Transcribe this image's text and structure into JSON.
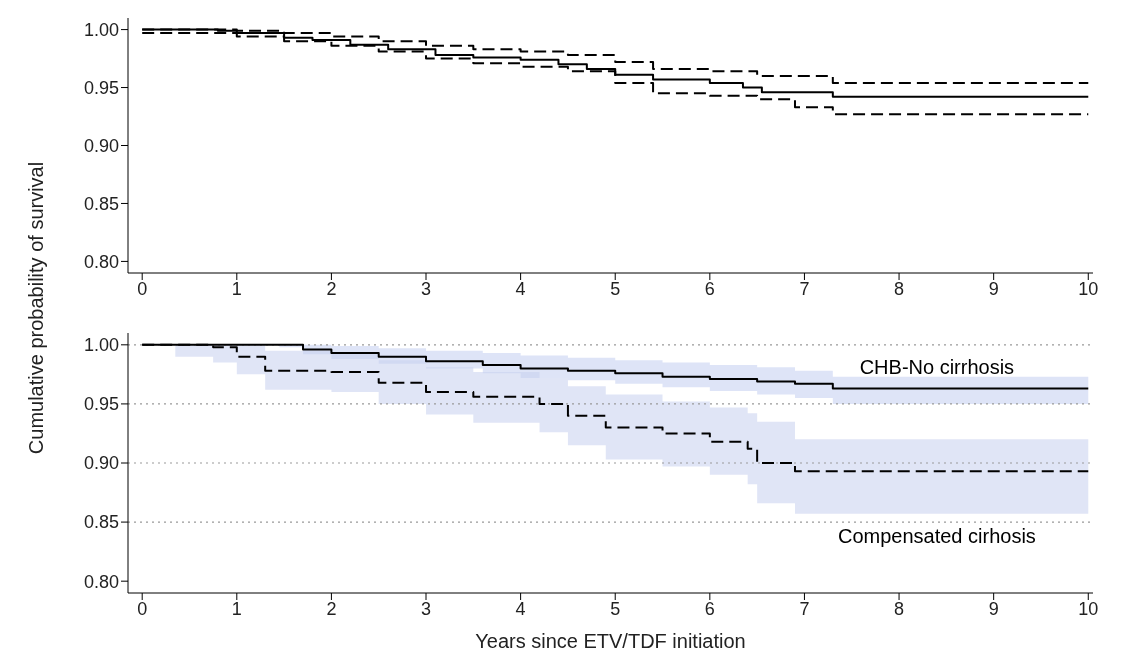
{
  "chart_data": [
    {
      "type": "step",
      "ylabel": "Cumulative probability of survival",
      "xlim": [
        -0.15,
        10.05
      ],
      "ylim": [
        0.79,
        1.01
      ],
      "xticks": [
        0,
        1,
        2,
        3,
        4,
        5,
        6,
        7,
        8,
        9,
        10
      ],
      "yticks": [
        {
          "value": 0.8,
          "label": "0.80"
        },
        {
          "value": 0.85,
          "label": "0.85"
        },
        {
          "value": 0.9,
          "label": "0.90"
        },
        {
          "value": 0.95,
          "label": "0.95"
        },
        {
          "value": 1,
          "label": "1.00"
        }
      ],
      "grid": false,
      "legend": false,
      "series": [
        {
          "color": "#000000",
          "line_style": "solid",
          "x": [
            0,
            0.8,
            1.0,
            1.5,
            1.8,
            2.2,
            2.6,
            3.1,
            3.5,
            4.0,
            4.4,
            4.7,
            5.0,
            5.4,
            6.0,
            6.35,
            6.55,
            7.3,
            10
          ],
          "values": [
            1,
            0.999,
            0.997,
            0.993,
            0.991,
            0.987,
            0.983,
            0.978,
            0.976,
            0.974,
            0.97,
            0.966,
            0.961,
            0.957,
            0.954,
            0.95,
            0.946,
            0.942,
            0.942
          ]
        },
        {
          "color": "#000000",
          "line_style": "dashed",
          "x": [
            0,
            0.8,
            1.0,
            1.5,
            2.0,
            2.5,
            3.0,
            3.5,
            4.0,
            4.5,
            5.0,
            5.4,
            6.0,
            6.5,
            7.3,
            10
          ],
          "values": [
            1,
            1,
            0.999,
            0.997,
            0.994,
            0.99,
            0.986,
            0.983,
            0.981,
            0.978,
            0.972,
            0.966,
            0.964,
            0.96,
            0.954,
            0.954
          ]
        },
        {
          "color": "#000000",
          "line_style": "dashed",
          "x": [
            0,
            0.8,
            1.0,
            1.5,
            2.0,
            2.5,
            3.0,
            3.5,
            4.0,
            4.5,
            5.0,
            5.4,
            6.0,
            6.5,
            6.9,
            7.3,
            10
          ],
          "values": [
            0.997,
            0.997,
            0.994,
            0.99,
            0.986,
            0.981,
            0.975,
            0.971,
            0.968,
            0.964,
            0.954,
            0.945,
            0.943,
            0.94,
            0.933,
            0.927,
            0.927
          ]
        }
      ]
    },
    {
      "type": "step",
      "xlabel": "Years since ETV/TDF initiation",
      "xlim": [
        -0.15,
        10.05
      ],
      "ylim": [
        0.79,
        1.01
      ],
      "xticks": [
        0,
        1,
        2,
        3,
        4,
        5,
        6,
        7,
        8,
        9,
        10
      ],
      "yticks": [
        {
          "value": 0.8,
          "label": "0.80"
        },
        {
          "value": 0.85,
          "label": "0.85"
        },
        {
          "value": 0.9,
          "label": "0.90"
        },
        {
          "value": 0.95,
          "label": "0.95"
        },
        {
          "value": 1,
          "label": "1.00"
        }
      ],
      "grid": false,
      "legend": false,
      "ref_lines": [
        {
          "axis": "y",
          "value": 0.85,
          "color": "#999999",
          "line_style": "dotted"
        },
        {
          "axis": "y",
          "value": 0.9,
          "color": "#999999",
          "line_style": "dotted"
        },
        {
          "axis": "y",
          "value": 0.95,
          "color": "#999999",
          "line_style": "dotted"
        },
        {
          "axis": "y",
          "value": 1,
          "color": "#999999",
          "line_style": "dotted"
        }
      ],
      "series": [
        {
          "name": "CHB-No cirrhosis",
          "color": "#000000",
          "line_style": "solid",
          "x": [
            0,
            1.45,
            1.45,
            1.7,
            1.7,
            2.0,
            2.0,
            2.5,
            2.5,
            3.0,
            3.0,
            3.6,
            3.6,
            4.0,
            4.0,
            4.5,
            4.5,
            5.0,
            5.0,
            5.5,
            5.5,
            6.0,
            6.0,
            6.5,
            6.5,
            6.9,
            6.9,
            7.3,
            7.3,
            10
          ],
          "values": [
            1,
            1,
            1,
            1,
            0.996,
            0.996,
            0.993,
            0.993,
            0.99,
            0.99,
            0.986,
            0.986,
            0.983,
            0.983,
            0.98,
            0.98,
            0.978,
            0.978,
            0.976,
            0.976,
            0.973,
            0.973,
            0.971,
            0.971,
            0.969,
            0.969,
            0.967,
            0.967,
            0.963,
            0.963
          ],
          "upper": [
            1,
            1,
            1,
            1,
            1,
            1,
            0.999,
            0.999,
            0.997,
            0.997,
            0.995,
            0.995,
            0.993,
            0.993,
            0.991,
            0.991,
            0.989,
            0.989,
            0.987,
            0.987,
            0.985,
            0.985,
            0.983,
            0.983,
            0.981,
            0.981,
            0.978,
            0.978,
            0.973,
            0.973
          ],
          "lower": [
            1,
            1,
            0.998,
            0.998,
            0.992,
            0.992,
            0.988,
            0.988,
            0.984,
            0.984,
            0.98,
            0.98,
            0.976,
            0.976,
            0.972,
            0.972,
            0.97,
            0.97,
            0.967,
            0.967,
            0.964,
            0.964,
            0.961,
            0.961,
            0.958,
            0.958,
            0.955,
            0.955,
            0.95,
            0.95
          ]
        },
        {
          "name": "Compensated cirhosis",
          "color": "#000000",
          "line_style": "dashed",
          "x": [
            0,
            0.35,
            0.35,
            0.75,
            0.75,
            1.0,
            1.0,
            1.3,
            1.3,
            2.0,
            2.0,
            2.5,
            2.5,
            3.0,
            3.0,
            3.5,
            3.5,
            4.2,
            4.2,
            4.5,
            4.5,
            4.9,
            4.9,
            5.5,
            5.5,
            6.0,
            6.0,
            6.4,
            6.4,
            6.5,
            6.5,
            6.9,
            6.9,
            10
          ],
          "values": [
            1,
            1,
            1,
            1,
            0.998,
            0.998,
            0.99,
            0.99,
            0.978,
            0.978,
            0.977,
            0.977,
            0.968,
            0.968,
            0.96,
            0.96,
            0.956,
            0.956,
            0.95,
            0.95,
            0.94,
            0.94,
            0.93,
            0.93,
            0.925,
            0.925,
            0.918,
            0.918,
            0.912,
            0.912,
            0.9,
            0.9,
            0.893,
            0.893
          ],
          "upper": [
            1,
            1,
            1,
            1,
            1,
            1,
            1,
            1,
            0.995,
            0.995,
            0.993,
            0.993,
            0.987,
            0.987,
            0.981,
            0.981,
            0.977,
            0.977,
            0.972,
            0.972,
            0.965,
            0.965,
            0.958,
            0.958,
            0.952,
            0.952,
            0.947,
            0.947,
            0.942,
            0.942,
            0.935,
            0.935,
            0.92,
            0.92
          ],
          "lower": [
            1,
            1,
            0.99,
            0.99,
            0.985,
            0.985,
            0.975,
            0.975,
            0.962,
            0.962,
            0.96,
            0.96,
            0.95,
            0.95,
            0.941,
            0.941,
            0.934,
            0.934,
            0.926,
            0.926,
            0.915,
            0.915,
            0.903,
            0.903,
            0.897,
            0.897,
            0.89,
            0.89,
            0.882,
            0.882,
            0.866,
            0.866,
            0.857,
            0.857
          ]
        }
      ]
    }
  ]
}
